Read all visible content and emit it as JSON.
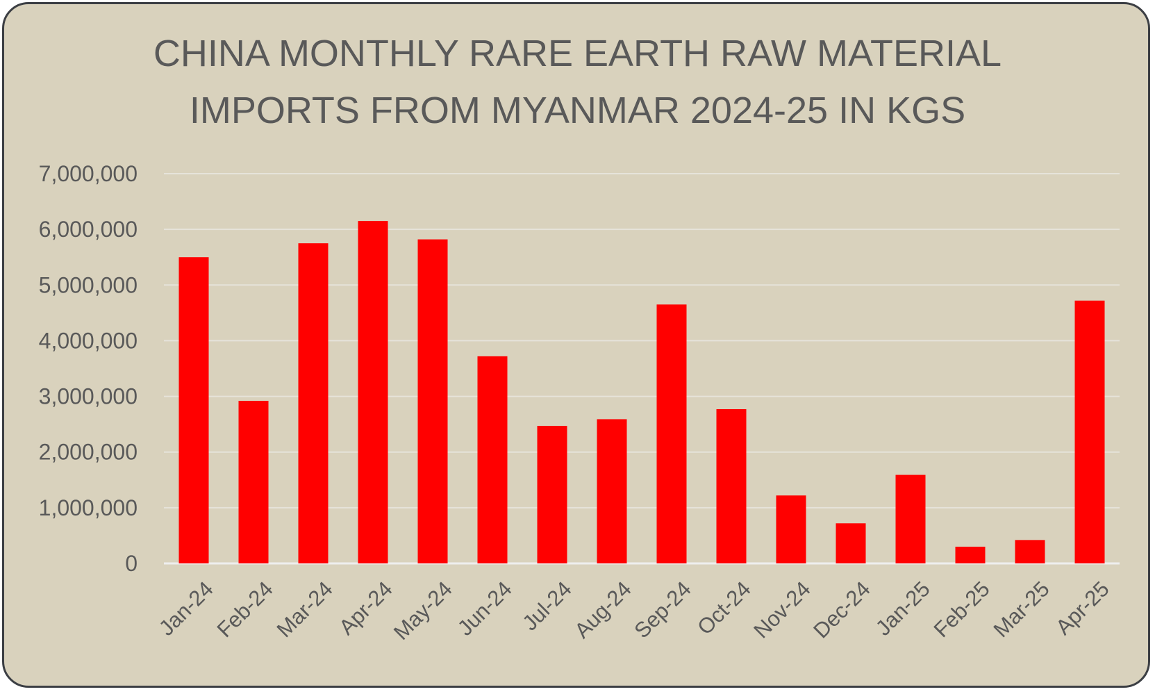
{
  "chart_data": {
    "type": "bar",
    "title_lines": [
      "CHINA MONTHLY RARE EARTH RAW MATERIAL",
      "IMPORTS FROM MYANMAR 2024-25 IN KGS"
    ],
    "xlabel": "",
    "ylabel": "",
    "ylim": [
      0,
      7000000
    ],
    "yticks": [
      0,
      1000000,
      2000000,
      3000000,
      4000000,
      5000000,
      6000000,
      7000000
    ],
    "ytick_labels": [
      "0",
      "1,000,000",
      "2,000,000",
      "3,000,000",
      "4,000,000",
      "5,000,000",
      "6,000,000",
      "7,000,000"
    ],
    "grid": true,
    "legend": "none",
    "bar_color": "#ff0000",
    "categories": [
      "Jan-24",
      "Feb-24",
      "Mar-24",
      "Apr-24",
      "May-24",
      "Jun-24",
      "Jul-24",
      "Aug-24",
      "Sep-24",
      "Oct-24",
      "Nov-24",
      "Dec-24",
      "Jan-25",
      "Feb-25",
      "Mar-25",
      "Apr-25"
    ],
    "values": [
      5500000,
      2920000,
      5750000,
      6150000,
      5820000,
      3720000,
      2470000,
      2590000,
      4650000,
      2770000,
      1220000,
      720000,
      1590000,
      300000,
      420000,
      4720000
    ]
  }
}
